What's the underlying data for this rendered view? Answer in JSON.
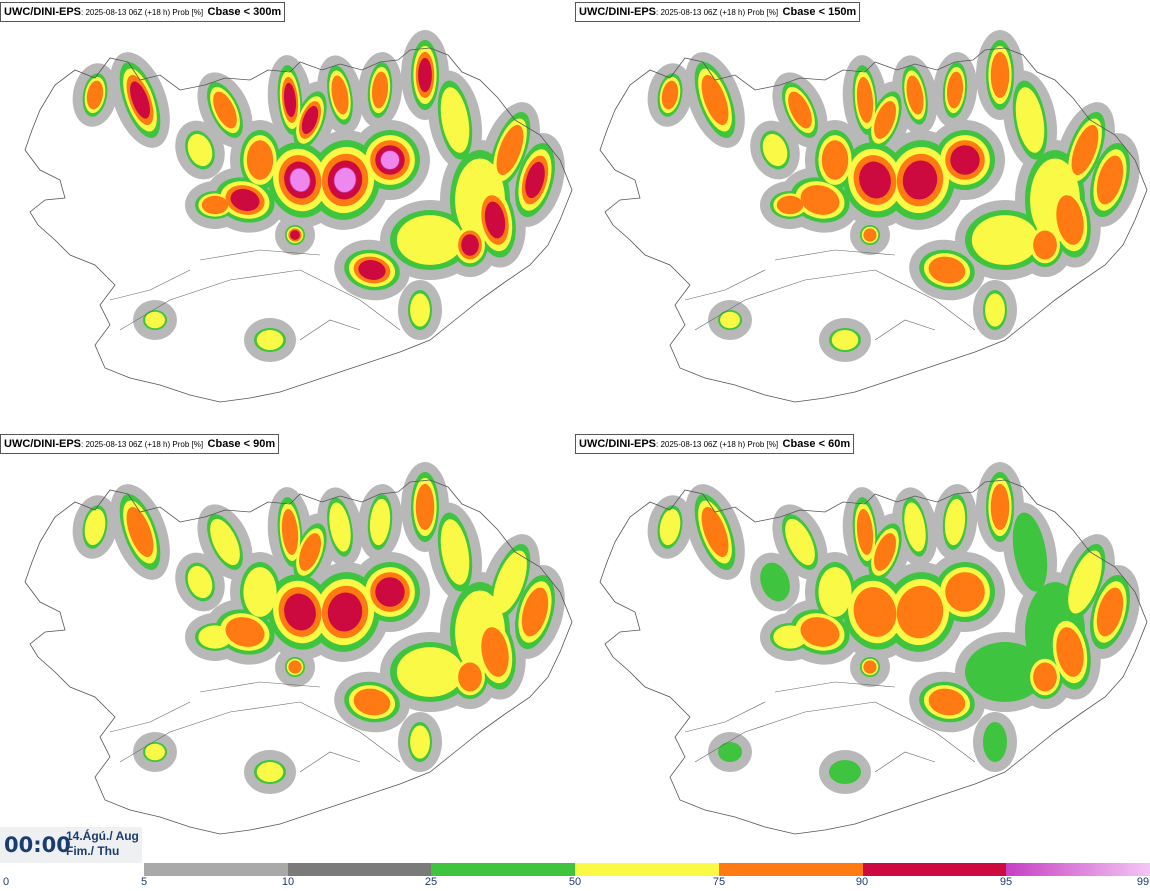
{
  "panels": [
    {
      "model": "UWC/DINI-EPS",
      "meta": ": 2025-08-13 06Z (+18 h) Prob [%]",
      "field": "Cbase < 300m",
      "intensity": 1.0
    },
    {
      "model": "UWC/DINI-EPS",
      "meta": ": 2025-08-13 06Z (+18 h) Prob [%]",
      "field": "Cbase < 150m",
      "intensity": 0.82
    },
    {
      "model": "UWC/DINI-EPS",
      "meta": ": 2025-08-13 06Z (+18 h) Prob [%]",
      "field": "Cbase < 90m",
      "intensity": 0.7
    },
    {
      "model": "UWC/DINI-EPS",
      "meta": ": 2025-08-13 06Z (+18 h) Prob [%]",
      "field": "Cbase < 60m",
      "intensity": 0.62
    }
  ],
  "time": {
    "clock": "00:00",
    "date_line1": "14.Ágú./ Aug",
    "date_line2": "Fim./ Thu"
  },
  "colorbar": {
    "ticks": [
      "0",
      "5",
      "10",
      "25",
      "50",
      "75",
      "90",
      "95",
      "99"
    ],
    "colors": [
      "#a9a9a9",
      "#7a7a7a",
      "#3ec43e",
      "#fafa46",
      "#ff7a12",
      "#cc0a40",
      "#c63fc3"
    ],
    "last_gradient_end": "#f4c6f4"
  },
  "legend_colors": {
    "green": "#3ec43e",
    "yellow": "#fafa46",
    "orange": "#ff7a12",
    "red": "#cc0a40",
    "magenta": "#c63fc3",
    "pink": "#ee88ee",
    "grey": "#9c9c9c",
    "darkgrey": "#7a7a7a"
  }
}
